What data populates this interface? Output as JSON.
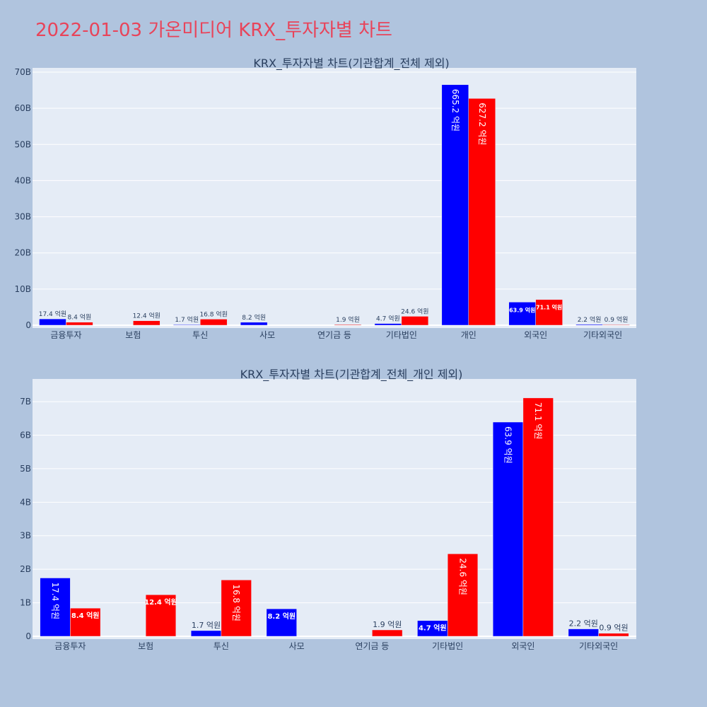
{
  "page_title": "2022-01-03 가온미디어 KRX_투자자별 차트",
  "colors": {
    "background": "#b0c4de",
    "plot_background": "#e5ecf6",
    "title": "#e8445a",
    "series_a": "#0000ff",
    "series_b": "#ff0000",
    "text": "#2a3f5f"
  },
  "chart_data": [
    {
      "type": "bar",
      "title": "KRX_투자자별 차트(기관합계_전체 제외)",
      "categories": [
        "금융투자",
        "보험",
        "투신",
        "사모",
        "연기금 등",
        "기타법인",
        "개인",
        "외국인",
        "기타외국인"
      ],
      "ylim": [
        0,
        70
      ],
      "yticks": [
        0,
        10,
        20,
        30,
        40,
        50,
        60,
        70
      ],
      "ytick_labels": [
        "0",
        "10B",
        "20B",
        "30B",
        "40B",
        "50B",
        "60B",
        "70B"
      ],
      "grid": true,
      "series": [
        {
          "color": "#0000ff",
          "values": [
            1.74,
            null,
            0.17,
            0.82,
            null,
            0.47,
            66.52,
            6.39,
            0.22
          ],
          "labels": [
            "17.4 억원",
            "",
            "1.7 억원",
            "8.2 억원",
            "",
            "4.7 억원",
            "665.2 억원",
            "63.9 억원",
            "2.2 억원"
          ]
        },
        {
          "color": "#ff0000",
          "values": [
            0.84,
            1.24,
            1.68,
            null,
            0.19,
            2.46,
            62.72,
            7.11,
            0.09
          ],
          "labels": [
            "8.4 억원",
            "12.4 억원",
            "16.8 억원",
            "",
            "1.9 억원",
            "24.6 억원",
            "627.2 억원",
            "71.1 억원",
            "0.9 억원"
          ]
        }
      ]
    },
    {
      "type": "bar",
      "title": "KRX_투자자별 차트(기관합계_전체_개인 제외)",
      "categories": [
        "금융투자",
        "보험",
        "투신",
        "사모",
        "연기금 등",
        "기타법인",
        "외국인",
        "기타외국인"
      ],
      "ylim": [
        0,
        7.55
      ],
      "yticks": [
        0,
        1,
        2,
        3,
        4,
        5,
        6,
        7
      ],
      "ytick_labels": [
        "0",
        "1B",
        "2B",
        "3B",
        "4B",
        "5B",
        "6B",
        "7B"
      ],
      "grid": true,
      "series": [
        {
          "color": "#0000ff",
          "values": [
            1.74,
            null,
            0.17,
            0.82,
            null,
            0.47,
            6.39,
            0.22
          ],
          "labels": [
            "17.4 억원",
            "",
            "1.7 억원",
            "8.2 억원",
            "",
            "4.7 억원",
            "63.9 억원",
            "2.2 억원"
          ]
        },
        {
          "color": "#ff0000",
          "values": [
            0.84,
            1.24,
            1.68,
            null,
            0.19,
            2.46,
            7.11,
            0.09
          ],
          "labels": [
            "8.4 억원",
            "12.4 억원",
            "16.8 억원",
            "",
            "1.9 억원",
            "24.6 억원",
            "71.1 억원",
            "0.9 억원"
          ]
        }
      ]
    }
  ]
}
